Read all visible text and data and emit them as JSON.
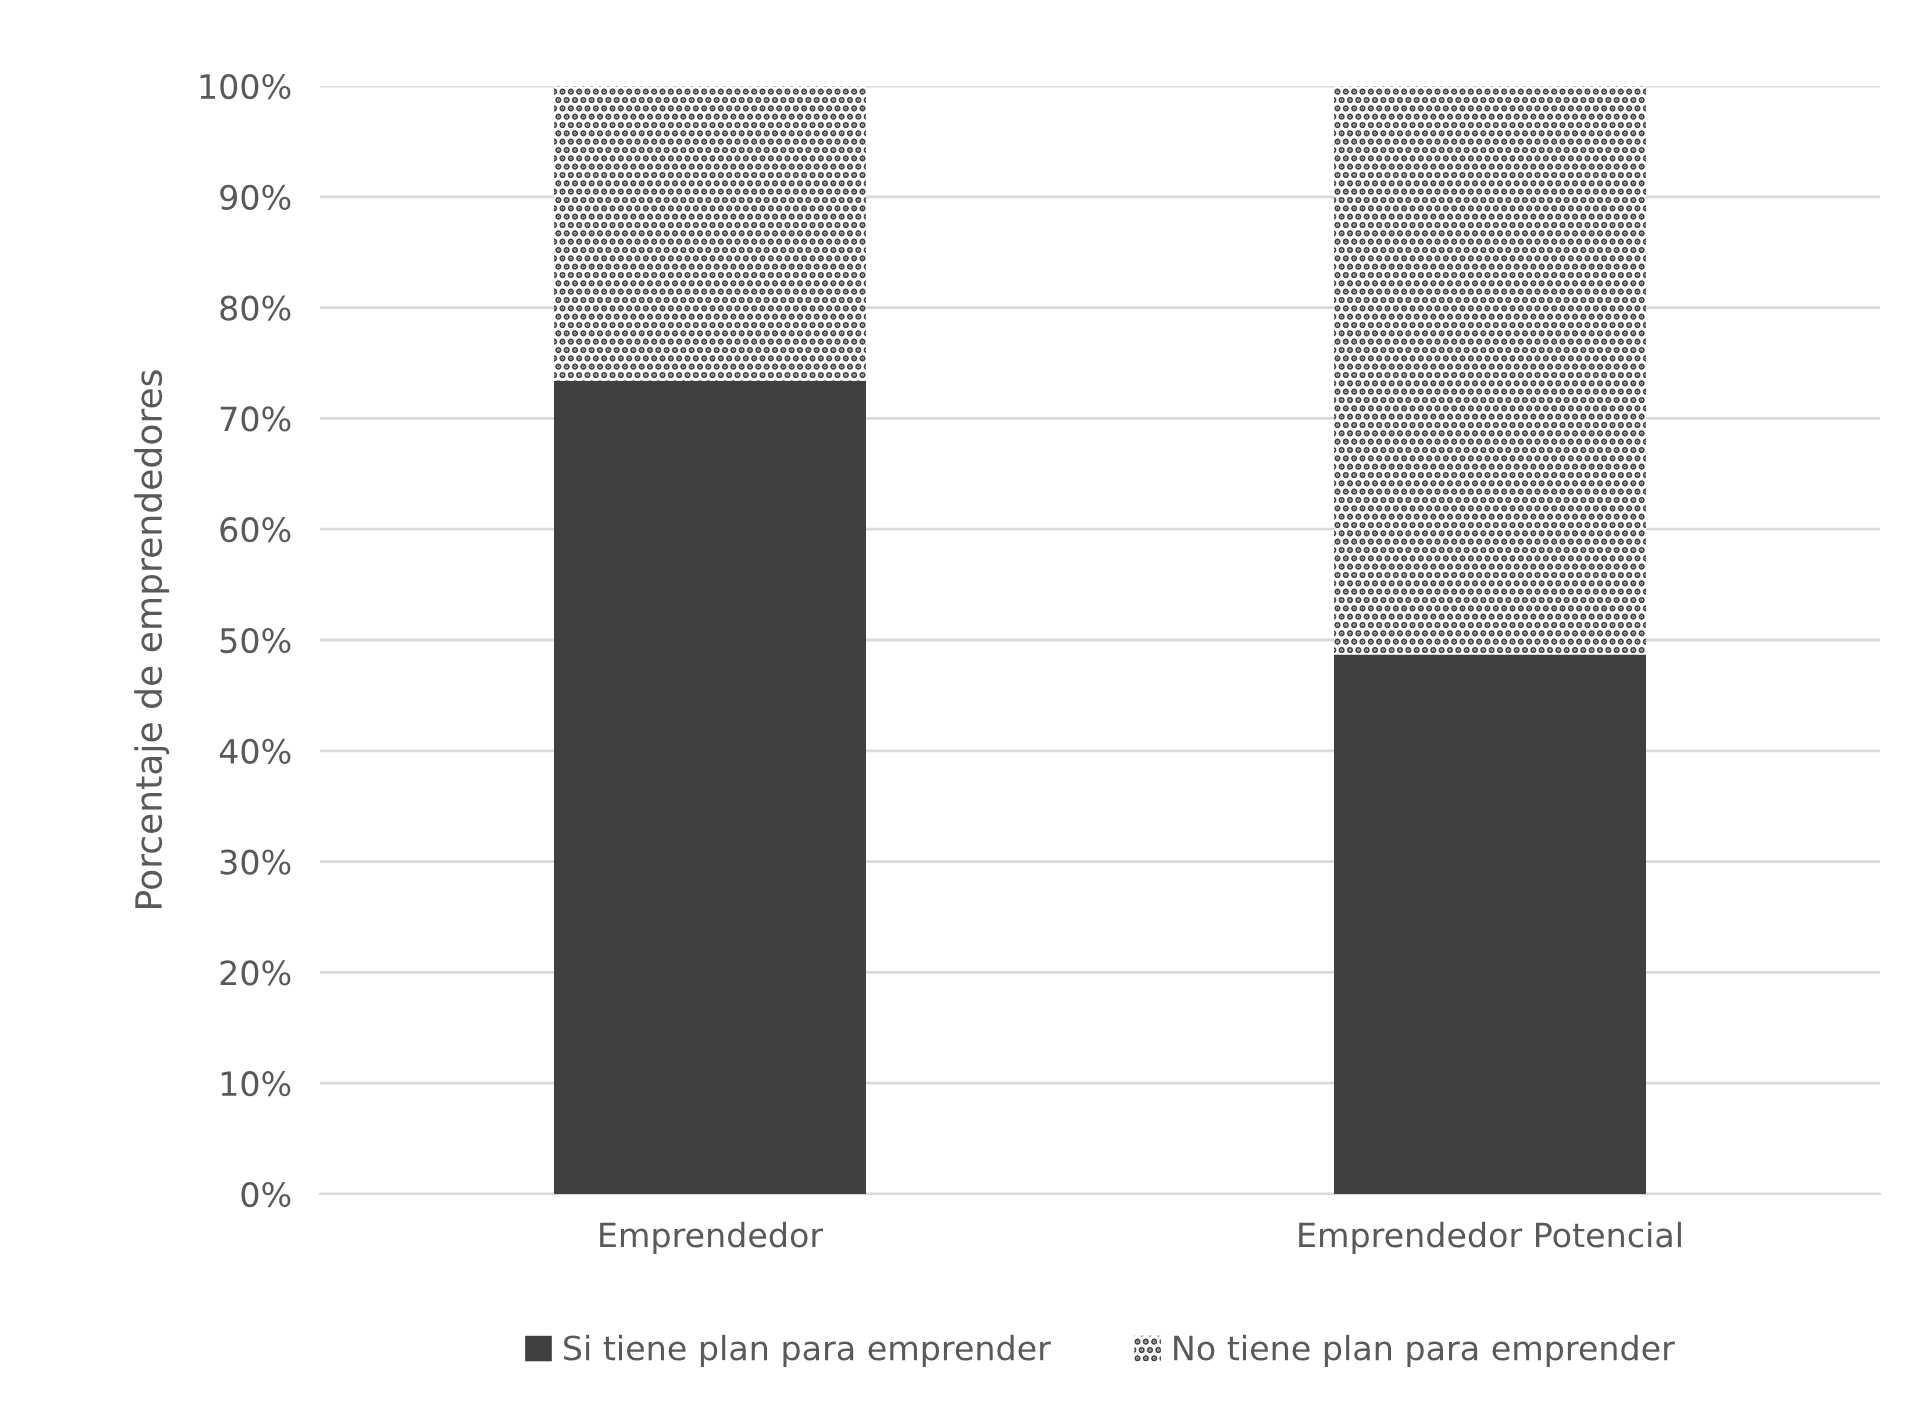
{
  "chart_data": {
    "type": "bar",
    "stacked": true,
    "ylabel": "Porcentaje de emprendedores",
    "categories": [
      "Emprendedor",
      "Emprendedor Potencial"
    ],
    "series": [
      {
        "name": "Si tiene plan para emprender",
        "color": "#404040",
        "values": [
          73.4,
          48.7
        ]
      },
      {
        "name": "No tiene plan para emprender",
        "color": "#404040",
        "values": [
          26.6,
          51.3
        ]
      }
    ],
    "ylim": [
      0,
      100
    ],
    "yticks": [
      {
        "value": 0,
        "label": "0%"
      },
      {
        "value": 10,
        "label": "10%"
      },
      {
        "value": 20,
        "label": "20%"
      },
      {
        "value": 30,
        "label": "30%"
      },
      {
        "value": 40,
        "label": "40%"
      },
      {
        "value": 50,
        "label": "50%"
      },
      {
        "value": 60,
        "label": "60%"
      },
      {
        "value": 70,
        "label": "70%"
      },
      {
        "value": 80,
        "label": "80%"
      },
      {
        "value": 90,
        "label": "90%"
      },
      {
        "value": 100,
        "label": "100%"
      }
    ],
    "grid": "y",
    "legend": "bottom"
  }
}
